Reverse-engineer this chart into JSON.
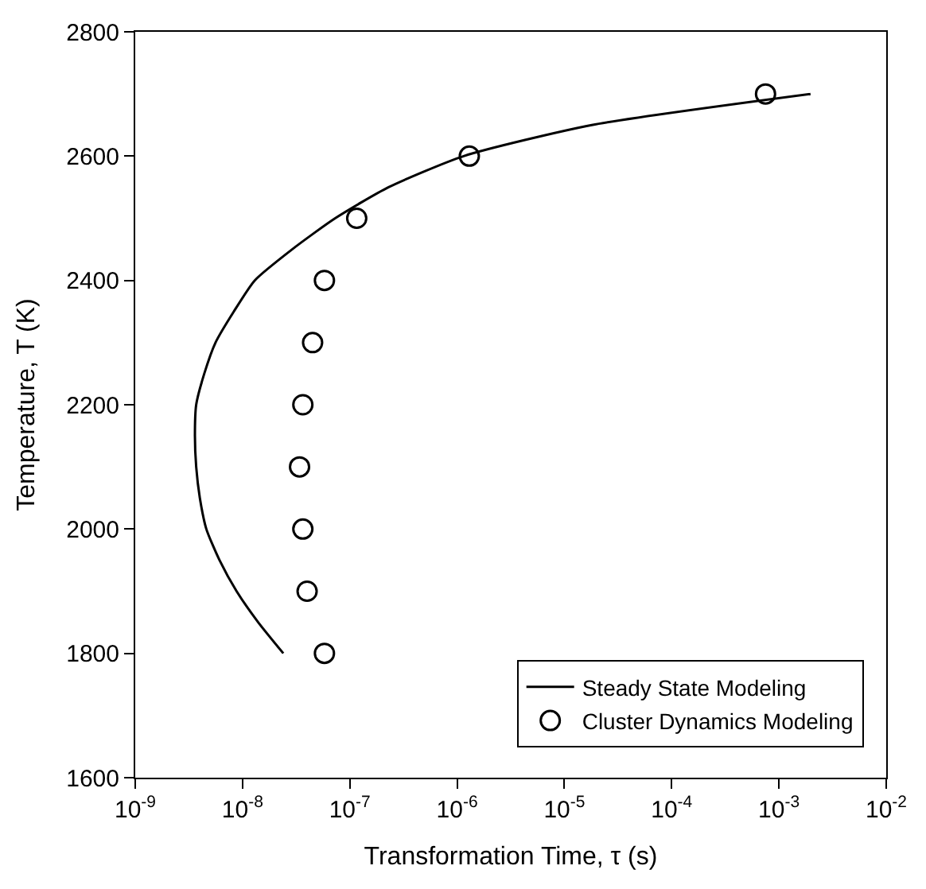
{
  "chart_data": {
    "type": "scatter",
    "xlabel": "Transformation Time, τ (s)",
    "ylabel": "Temperature, T (K)",
    "log": "x",
    "legend": "bottom right",
    "xlim": [
      1e-09,
      0.01
    ],
    "ylim": [
      1600,
      2800
    ],
    "xticks": [
      {
        "value": 1e-09,
        "label": "10$^{-9}$"
      },
      {
        "value": 1e-08,
        "label": "10$^{-8}$"
      },
      {
        "value": 1e-07,
        "label": "10$^{-7}$"
      },
      {
        "value": 1e-06,
        "label": "10$^{-6}$"
      },
      {
        "value": 1e-05,
        "label": "10$^{-5}$"
      },
      {
        "value": 0.0001,
        "label": "10$^{-4}$"
      },
      {
        "value": 0.001,
        "label": "10$^{-3}$"
      },
      {
        "value": 0.01,
        "label": "10$^{-2}$"
      }
    ],
    "yticks": [
      1600,
      1800,
      2000,
      2200,
      2400,
      2600,
      2800
    ],
    "series": [
      {
        "name": "Steady State Modeling",
        "type": "line",
        "color": "#000000",
        "line_style": "solid",
        "marker": "none",
        "x": [
          2.4e-08,
          1.4e-08,
          8.8e-09,
          6.1e-09,
          4.6e-09,
          4e-09,
          3.7e-09,
          3.6e-09,
          3.7e-09,
          4.4e-09,
          5.6e-09,
          8.3e-09,
          1.3e-08,
          2.9e-08,
          7.3e-08,
          2.3e-07,
          1.15e-06,
          1.8e-05,
          0.00197
        ],
        "values": [
          1800,
          1850,
          1900,
          1950,
          2000,
          2050,
          2100,
          2150,
          2200,
          2250,
          2300,
          2350,
          2400,
          2450,
          2500,
          2550,
          2600,
          2650,
          2700
        ]
      },
      {
        "name": "Cluster Dynamics Modeling",
        "color": "#000000",
        "marker": "circle",
        "x": [
          5.8e-08,
          4e-08,
          3.65e-08,
          3.4e-08,
          3.65e-08,
          4.5e-08,
          5.8e-08,
          1.16e-07,
          1.3e-06,
          0.00075
        ],
        "values": [
          1800,
          1900,
          2000,
          2100,
          2200,
          2300,
          2400,
          2500,
          2600,
          2700
        ]
      }
    ]
  }
}
